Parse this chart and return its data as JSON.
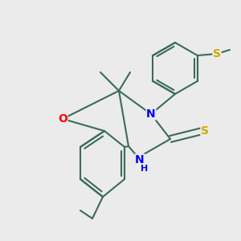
{
  "bg_color": "#ebebeb",
  "bond_color": "#3a6b5a",
  "bond_width": 1.5,
  "atom_colors": {
    "O": "#ff0000",
    "N": "#0000ff",
    "S": "#ccaa00",
    "C": "#3a6b5a",
    "H": "#3a6b5a"
  },
  "font_size": 8.5,
  "xlim": [
    0,
    300
  ],
  "ylim": [
    0,
    300
  ]
}
